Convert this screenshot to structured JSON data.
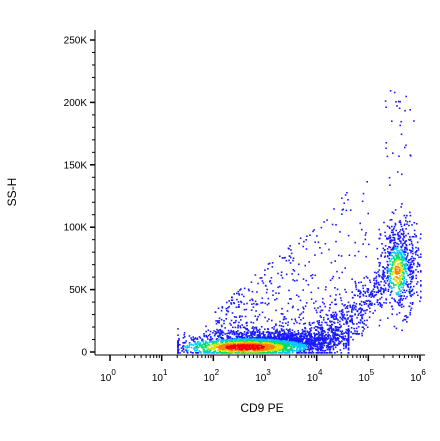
{
  "chart_data": {
    "type": "scatter",
    "style": "density-colored flow cytometry dot plot",
    "xlabel": "CD9 PE",
    "ylabel": "SS-H",
    "x_scale": "log",
    "xlim": [
      1,
      1000000
    ],
    "ylim": [
      0,
      262144
    ],
    "x_ticks": [
      {
        "base": "10",
        "exp": "0",
        "value": 1
      },
      {
        "base": "10",
        "exp": "1",
        "value": 10
      },
      {
        "base": "10",
        "exp": "2",
        "value": 100
      },
      {
        "base": "10",
        "exp": "3",
        "value": 1000
      },
      {
        "base": "10",
        "exp": "4",
        "value": 10000
      },
      {
        "base": "10",
        "exp": "5",
        "value": 100000
      },
      {
        "base": "10",
        "exp": "6",
        "value": 1000000
      }
    ],
    "y_ticks": [
      {
        "label": "0",
        "value": 0
      },
      {
        "label": "50K",
        "value": 50000
      },
      {
        "label": "100K",
        "value": 100000
      },
      {
        "label": "150K",
        "value": 150000
      },
      {
        "label": "200K",
        "value": 200000
      },
      {
        "label": "250K",
        "value": 250000
      }
    ],
    "populations": [
      {
        "center_x": 1000,
        "center_y": 5000,
        "x_range": [
          20,
          40000
        ],
        "y_range": [
          0,
          25000
        ],
        "density": "high",
        "note": "main low-scatter population"
      },
      {
        "center_x": 400000,
        "center_y": 70000,
        "x_range": [
          100000,
          1000000
        ],
        "y_range": [
          30000,
          140000
        ],
        "density": "medium",
        "note": "CD9-high population"
      },
      {
        "center_x": 5000,
        "center_y": 55000,
        "x_range": [
          100,
          100000
        ],
        "y_range": [
          15000,
          160000
        ],
        "density": "low",
        "note": "scattered events"
      }
    ],
    "density_colors": [
      "#1a1aff",
      "#00c8ff",
      "#00e060",
      "#e0e000",
      "#ff8000",
      "#ff0000"
    ],
    "grid": false,
    "legend": "none"
  }
}
